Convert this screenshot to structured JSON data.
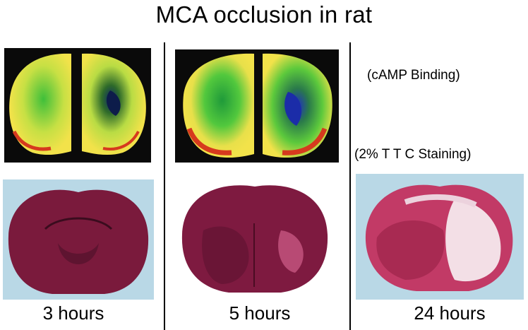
{
  "title": "MCA occlusion in rat",
  "labels": {
    "camp": "(cAMP Binding)",
    "ttc": "(2% T T C Staining)"
  },
  "captions": [
    "3 hours",
    "5 hours",
    "24 hours"
  ],
  "colors": {
    "background": "#ffffff",
    "autoradiograph_bg": "#0a0a0a",
    "binding_high": "#f2e24a",
    "binding_mid": "#6bd14a",
    "binding_low": "#2a3ad0",
    "binding_edge": "#d63a1e",
    "ttc_stain": "#7a1a3c",
    "ttc_pale": "#f3dfe6",
    "photo_bg": "#b9d8e6"
  }
}
